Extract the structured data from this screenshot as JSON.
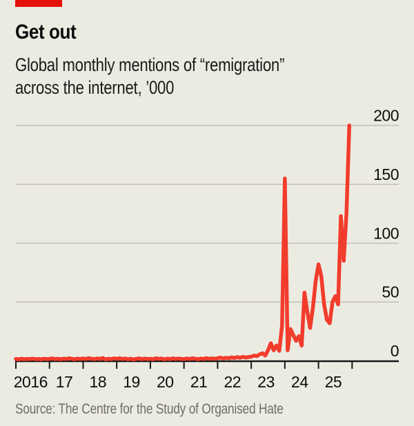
{
  "header": {
    "title": "Get out",
    "subtitle_line1": "Global monthly mentions of “remigration”",
    "subtitle_line2": "across the internet, ’000"
  },
  "footer": {
    "source": "Source: The Centre for the Study of Organised Hate"
  },
  "colors": {
    "background": "#ecebe2",
    "accent_red_tab": "#e3120b",
    "line_red": "#f23c2c",
    "gridline": "#b9b8af",
    "axis": "#161616",
    "text": "#0d0d0d",
    "subtitle_text": "#1a1a1a",
    "source_text": "#6e6e66"
  },
  "chart_data": {
    "type": "line",
    "title": "Get out",
    "subtitle": "Global monthly mentions of “remigration” across the internet, ’000",
    "unit": "thousands of mentions per month",
    "grid": "horizontal",
    "legend": "none",
    "y_label_side": "right",
    "y_ticks": [
      0,
      50,
      100,
      150,
      200
    ],
    "ylim": [
      0,
      205
    ],
    "x_domain_years": [
      2016,
      2026
    ],
    "x_tick_labels": [
      "2016",
      "17",
      "18",
      "19",
      "20",
      "21",
      "22",
      "23",
      "24",
      "25"
    ],
    "x_start_month": "2016-01",
    "x_end_month": "2025-12",
    "series": [
      {
        "name": "Monthly mentions of “remigration”, ’000",
        "monthly_values": [
          1.6,
          1.3,
          1.8,
          1.4,
          1.7,
          1.5,
          1.9,
          1.4,
          1.6,
          1.3,
          1.8,
          1.5,
          1.7,
          2.1,
          1.5,
          1.8,
          1.4,
          1.9,
          1.6,
          2.2,
          1.7,
          1.4,
          1.9,
          1.6,
          2.0,
          1.6,
          2.3,
          1.8,
          1.5,
          2.0,
          1.6,
          2.4,
          1.3,
          1.8,
          1.5,
          2.1,
          1.7,
          2.2,
          1.6,
          2.0,
          1.4,
          1.8,
          1.2,
          1.7,
          2.1,
          1.5,
          1.9,
          1.6,
          1.8,
          1.4,
          2.2,
          1.7,
          2.0,
          1.3,
          1.9,
          1.5,
          2.1,
          1.6,
          2.0,
          1.7,
          1.5,
          2.0,
          1.6,
          2.2,
          1.8,
          1.4,
          2.0,
          1.6,
          2.3,
          1.8,
          2.1,
          1.7,
          2.2,
          2.8,
          2.0,
          2.6,
          2.2,
          3.0,
          2.4,
          3.2,
          2.6,
          3.4,
          2.8,
          3.2,
          3.5,
          4.5,
          4.0,
          5.5,
          6.5,
          4.5,
          9.0,
          15.0,
          9.0,
          13.0,
          8.5,
          30.0,
          155,
          9,
          27,
          22,
          17,
          21,
          13,
          58,
          42,
          28,
          45,
          68,
          82,
          72,
          48,
          35,
          32,
          50,
          55,
          48,
          123,
          85,
          126,
          200
        ]
      }
    ]
  }
}
